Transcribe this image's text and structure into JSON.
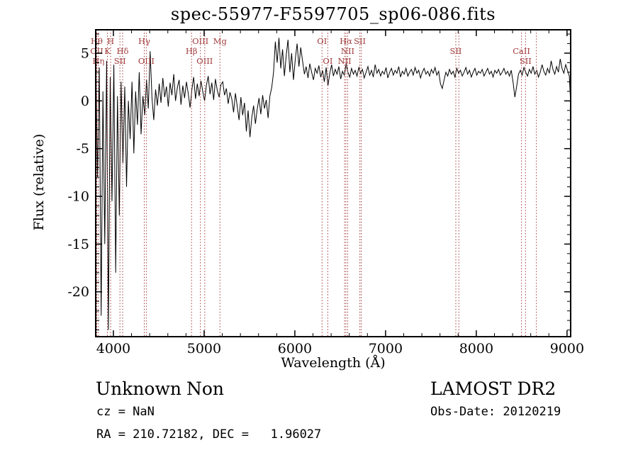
{
  "footer": {
    "class_label": "Unknown",
    "subclass_label": "Non",
    "survey": "LAMOST DR2",
    "cz": "cz = NaN",
    "obs_date": "Obs-Date: 20120219",
    "coords": "RA = 210.72182, DEC =   1.96027"
  },
  "chart_data": {
    "type": "line",
    "title": "spec-55977-F5597705_sp06-086.fits",
    "xlabel": "Wavelength (Å)",
    "ylabel": "Flux (relative)",
    "xlim": [
      3805,
      9040
    ],
    "ylim": [
      -24.7,
      7.45
    ],
    "x_ticks": [
      4000,
      5000,
      6000,
      7000,
      8000,
      9000
    ],
    "y_ticks": [
      5,
      0,
      -5,
      -10,
      -15,
      -20
    ],
    "grid": false,
    "legend": "none",
    "spectrum_color": "#000000",
    "marker_color": "#a03a3a",
    "series": [
      {
        "name": "spectrum",
        "wl_start": 3805,
        "wl_step": 20,
        "flux": [
          4.8,
          -8.0,
          3.5,
          -22.5,
          1.0,
          -15.0,
          4.2,
          -24.0,
          2.5,
          -10.5,
          3.8,
          -18.0,
          0.5,
          -12.0,
          2.0,
          -6.5,
          1.5,
          -9.0,
          0.0,
          -4.0,
          2.0,
          -5.5,
          1.0,
          -2.5,
          3.0,
          -3.5,
          0.5,
          -1.5,
          2.2,
          -0.8,
          5.2,
          0.3,
          -2.0,
          1.2,
          -0.5,
          1.8,
          -0.2,
          2.4,
          0.4,
          1.5,
          -0.6,
          1.9,
          0.6,
          2.8,
          0.0,
          1.4,
          2.2,
          -0.4,
          1.6,
          0.3,
          2.0,
          0.8,
          -0.7,
          1.2,
          2.5,
          0.2,
          1.8,
          0.5,
          2.1,
          1.0,
          0.0,
          1.6,
          2.6,
          0.7,
          1.9,
          0.1,
          2.3,
          1.1,
          0.4,
          1.7,
          2.0,
          0.6,
          1.3,
          -0.3,
          0.9,
          0.2,
          -1.2,
          0.8,
          -0.6,
          -2.0,
          0.4,
          -1.5,
          -0.2,
          -3.2,
          -1.0,
          -3.8,
          -1.8,
          -0.5,
          -2.4,
          -0.9,
          0.3,
          -1.4,
          0.6,
          -0.8,
          0.1,
          -1.8,
          0.5,
          1.4,
          3.0,
          6.2,
          4.0,
          6.6,
          3.4,
          5.4,
          2.6,
          4.8,
          6.4,
          3.0,
          5.0,
          2.2,
          4.4,
          6.0,
          3.6,
          5.6,
          4.2,
          2.8,
          3.6,
          2.4,
          3.9,
          3.0,
          2.2,
          3.4,
          2.9,
          3.7,
          2.5,
          3.2,
          2.0,
          3.5,
          1.6,
          2.9,
          3.8,
          2.6,
          3.3,
          2.8,
          3.6,
          2.3,
          3.1,
          2.7,
          3.9,
          3.0,
          2.5,
          3.4,
          2.8,
          3.2,
          2.6,
          3.5,
          2.9,
          3.3,
          2.4,
          3.0,
          3.6,
          2.7,
          3.2,
          2.5,
          3.8,
          2.9,
          3.3,
          2.6,
          3.1,
          2.8,
          3.5,
          2.4,
          3.0,
          3.4,
          2.7,
          3.2,
          2.9,
          3.6,
          2.5,
          3.1,
          2.8,
          3.4,
          2.6,
          3.0,
          3.3,
          2.7,
          3.5,
          2.9,
          3.2,
          2.4,
          3.0,
          3.4,
          2.8,
          3.1,
          2.6,
          3.3,
          2.9,
          3.5,
          2.7,
          3.1,
          1.8,
          1.3,
          2.2,
          3.0,
          2.6,
          3.3,
          2.8,
          3.1,
          2.5,
          3.4,
          2.9,
          3.2,
          2.6,
          3.0,
          3.5,
          2.8,
          3.2,
          2.5,
          3.0,
          3.4,
          2.7,
          3.1,
          2.9,
          3.3,
          2.6,
          3.0,
          3.4,
          2.8,
          3.1,
          2.5,
          3.2,
          2.9,
          3.3,
          2.7,
          3.0,
          3.4,
          2.8,
          3.1,
          2.6,
          3.2,
          2.0,
          0.4,
          1.5,
          2.8,
          3.2,
          2.7,
          3.5,
          3.0,
          2.6,
          3.3,
          2.9,
          3.6,
          2.8,
          3.2,
          2.5,
          3.0,
          3.8,
          3.1,
          2.7,
          3.4,
          2.9,
          4.2,
          3.3,
          2.8,
          3.6,
          3.0,
          4.4,
          3.4,
          2.9,
          3.8,
          3.2,
          2.6,
          -1.2
        ]
      }
    ],
    "spectral_lines": [
      {
        "wl": 3727,
        "label": "OII",
        "row": 2
      },
      {
        "wl": 3798,
        "label": "Hθ",
        "row": 1
      },
      {
        "wl": 3835,
        "label": "Hη",
        "row": 3
      },
      {
        "wl": 3934,
        "label": "K",
        "row": 2
      },
      {
        "wl": 3970,
        "label": "H",
        "row": 1
      },
      {
        "wl": 4072,
        "label": "SII",
        "row": 3
      },
      {
        "wl": 4102,
        "label": "Hδ",
        "row": 2
      },
      {
        "wl": 4340,
        "label": "Hγ",
        "row": 1
      },
      {
        "wl": 4363,
        "label": "OIII",
        "row": 3
      },
      {
        "wl": 4861,
        "label": "Hβ",
        "row": 2
      },
      {
        "wl": 4959,
        "label": "OIII",
        "row": 1
      },
      {
        "wl": 5007,
        "label": "OIII",
        "row": 3
      },
      {
        "wl": 5175,
        "label": "Mg",
        "row": 1
      },
      {
        "wl": 6300,
        "label": "OI",
        "row": 1
      },
      {
        "wl": 6363,
        "label": "OI",
        "row": 3
      },
      {
        "wl": 6548,
        "label": "NII",
        "row": 3
      },
      {
        "wl": 6563,
        "label": "Hα",
        "row": 1
      },
      {
        "wl": 6583,
        "label": "NII",
        "row": 2
      },
      {
        "wl": 6716,
        "label": "SII",
        "row": 1
      },
      {
        "wl": 6731,
        "label": "",
        "row": 1
      },
      {
        "wl": 7774,
        "label": "SII",
        "row": 2
      },
      {
        "wl": 7808,
        "label": "",
        "row": 2
      },
      {
        "wl": 8498,
        "label": "CaII",
        "row": 2
      },
      {
        "wl": 8542,
        "label": "SII",
        "row": 3
      },
      {
        "wl": 8662,
        "label": "",
        "row": 2
      }
    ]
  }
}
